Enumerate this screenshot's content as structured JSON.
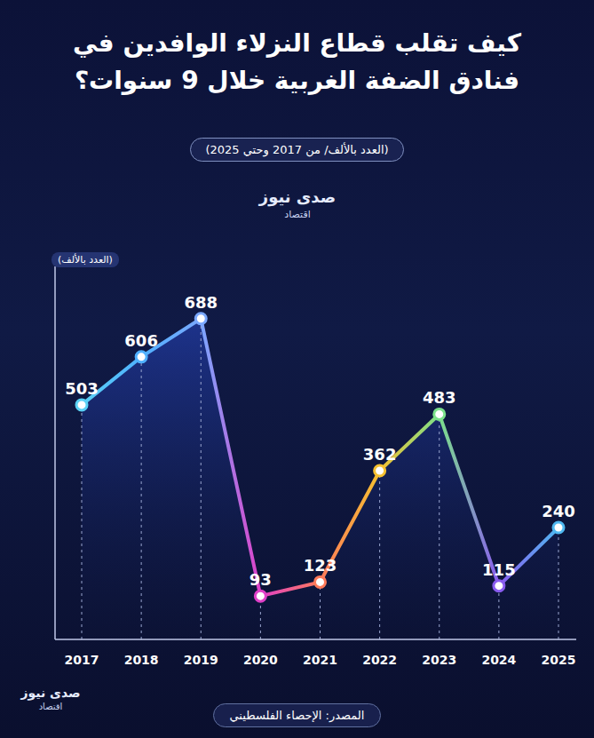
{
  "chart_data": {
    "type": "line",
    "title": "كيف تقلب قطاع النزلاء الوافدين في فنادق الضفة الغربية خلال 9 سنوات؟",
    "subtitle": "(العدد بالألف/ من 2017 وحتي 2025)",
    "y_label": "(العدد بالألف)",
    "source": "المصدر: الإحصاء الفلسطيني",
    "annotations": [
      "صدى نيوز",
      "اقتصاد"
    ],
    "categories": [
      "2017",
      "2018",
      "2019",
      "2020",
      "2021",
      "2022",
      "2023",
      "2024",
      "2025"
    ],
    "values": [
      503,
      606,
      688,
      93,
      123,
      362,
      483,
      115,
      240
    ],
    "colors": [
      "#5ad1f5",
      "#4fb0ff",
      "#7aa8ff",
      "#e040c8",
      "#ff7a5a",
      "#f5c030",
      "#7be08a",
      "#8a5cf0",
      "#4fb8f0"
    ],
    "ylim": [
      0,
      800
    ],
    "tick_labels": "x",
    "data_labels": true,
    "marker": "circle",
    "grid": false
  }
}
